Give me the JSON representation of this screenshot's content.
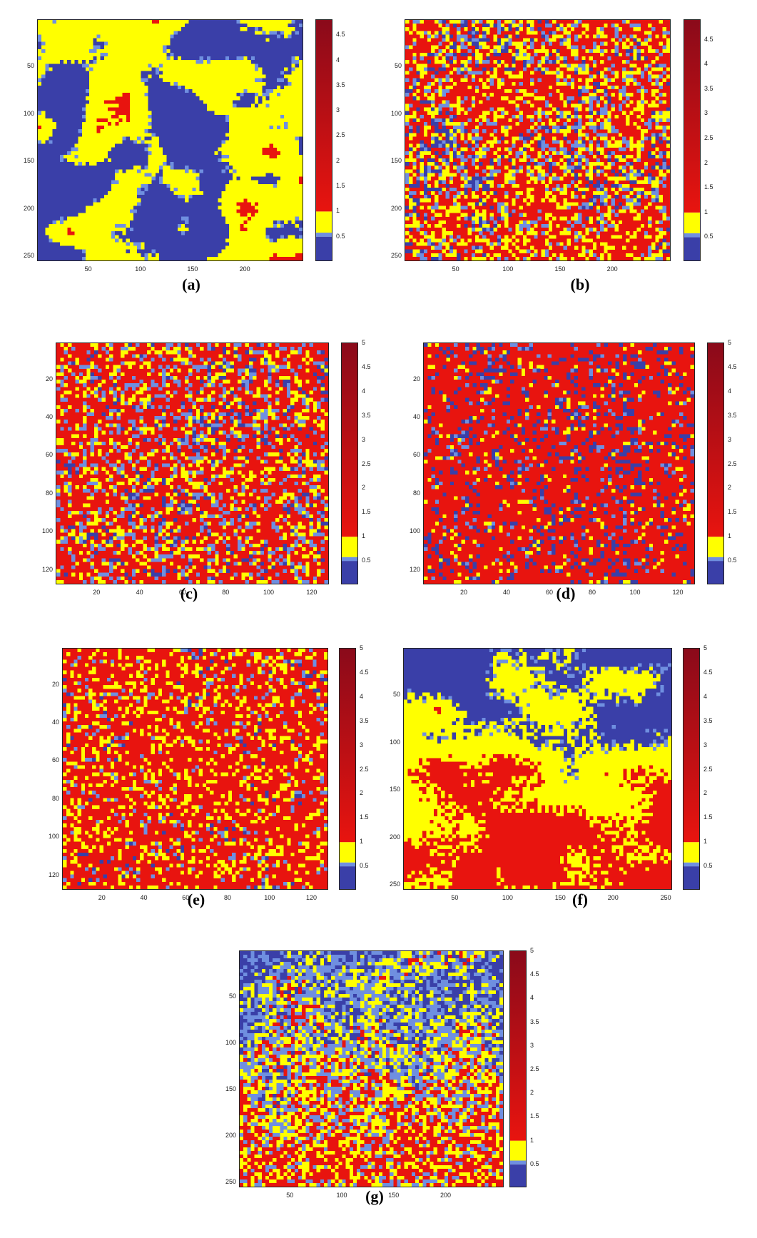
{
  "colors": {
    "dark_blue": "#3a3fa8",
    "light_blue": "#6f8fe0",
    "yellow": "#ffff00",
    "red": "#e8140f",
    "dark_red": "#8a0a1a"
  },
  "chart_data": [
    {
      "type": "heatmap",
      "label": "(a)",
      "xticks": [
        "50",
        "100",
        "150",
        "200"
      ],
      "yticks": [
        "50",
        "100",
        "150",
        "200",
        "250"
      ],
      "xlim": [
        1,
        256
      ],
      "ylim": [
        1,
        256
      ],
      "colorbar": {
        "ticks": [
          "0.5",
          "1",
          "1.5",
          "2",
          "2.5",
          "3",
          "3.5",
          "4",
          "4.5"
        ],
        "range": [
          0,
          4.8
        ]
      },
      "composition": {
        "dark_blue": 0.43,
        "light_blue": 0.04,
        "yellow": 0.51,
        "red": 0.02
      }
    },
    {
      "type": "heatmap",
      "label": "(b)",
      "xticks": [
        "50",
        "100",
        "150",
        "200"
      ],
      "yticks": [
        "50",
        "100",
        "150",
        "200",
        "250"
      ],
      "xlim": [
        1,
        256
      ],
      "ylim": [
        1,
        256
      ],
      "colorbar": {
        "ticks": [
          "0.5",
          "1",
          "1.5",
          "2",
          "2.5",
          "3",
          "3.5",
          "4",
          "4.5"
        ],
        "range": [
          0,
          4.9
        ]
      },
      "composition": {
        "dark_blue": 0.08,
        "light_blue": 0.14,
        "yellow": 0.26,
        "red": 0.52
      }
    },
    {
      "type": "heatmap",
      "label": "(c)",
      "xticks": [
        "20",
        "40",
        "60",
        "80",
        "100",
        "120"
      ],
      "yticks": [
        "20",
        "40",
        "60",
        "80",
        "100",
        "120"
      ],
      "xlim": [
        1,
        128
      ],
      "ylim": [
        1,
        128
      ],
      "colorbar": {
        "ticks": [
          "0.5",
          "1",
          "1.5",
          "2",
          "2.5",
          "3",
          "3.5",
          "4",
          "4.5",
          "5"
        ],
        "range": [
          0,
          5
        ]
      },
      "composition": {
        "dark_blue": 0.06,
        "light_blue": 0.16,
        "yellow": 0.18,
        "red": 0.6
      }
    },
    {
      "type": "heatmap",
      "label": "(d)",
      "xticks": [
        "20",
        "40",
        "60",
        "80",
        "100",
        "120"
      ],
      "yticks": [
        "20",
        "40",
        "60",
        "80",
        "100",
        "120"
      ],
      "xlim": [
        1,
        128
      ],
      "ylim": [
        1,
        128
      ],
      "colorbar": {
        "ticks": [
          "0.5",
          "1",
          "1.5",
          "2",
          "2.5",
          "3",
          "3.5",
          "4",
          "4.5",
          "5"
        ],
        "range": [
          0,
          5
        ]
      },
      "composition": {
        "dark_blue": 0.14,
        "light_blue": 0.04,
        "yellow": 0.06,
        "red": 0.76
      }
    },
    {
      "type": "heatmap",
      "label": "(e)",
      "xticks": [
        "20",
        "40",
        "60",
        "80",
        "100",
        "120"
      ],
      "yticks": [
        "20",
        "40",
        "60",
        "80",
        "100",
        "120"
      ],
      "xlim": [
        1,
        128
      ],
      "ylim": [
        1,
        128
      ],
      "colorbar": {
        "ticks": [
          "0.5",
          "1",
          "1.5",
          "2",
          "2.5",
          "3",
          "3.5",
          "4",
          "4.5",
          "5"
        ],
        "range": [
          0,
          5
        ]
      },
      "composition": {
        "dark_blue": 0.02,
        "light_blue": 0.06,
        "yellow": 0.2,
        "red": 0.72
      }
    },
    {
      "type": "heatmap",
      "label": "(f)",
      "xticks": [
        "50",
        "100",
        "150",
        "200",
        "250"
      ],
      "yticks": [
        "50",
        "100",
        "150",
        "200",
        "250"
      ],
      "xlim": [
        1,
        256
      ],
      "ylim": [
        1,
        256
      ],
      "colorbar": {
        "ticks": [
          "0.5",
          "1",
          "1.5",
          "2",
          "2.5",
          "3",
          "3.5",
          "4",
          "4.5",
          "5"
        ],
        "range": [
          0,
          5
        ]
      },
      "composition": {
        "dark_blue": 0.22,
        "light_blue": 0.03,
        "yellow": 0.42,
        "red": 0.33
      }
    },
    {
      "type": "heatmap",
      "label": "(g)",
      "xticks": [
        "50",
        "100",
        "150",
        "200"
      ],
      "yticks": [
        "50",
        "100",
        "150",
        "200",
        "250"
      ],
      "xlim": [
        1,
        256
      ],
      "ylim": [
        1,
        256
      ],
      "colorbar": {
        "ticks": [
          "0.5",
          "1",
          "1.5",
          "2",
          "2.5",
          "3",
          "3.5",
          "4",
          "4.5",
          "5"
        ],
        "range": [
          0,
          5
        ]
      },
      "composition": {
        "dark_blue": 0.14,
        "light_blue": 0.3,
        "yellow": 0.3,
        "red": 0.26
      }
    }
  ]
}
